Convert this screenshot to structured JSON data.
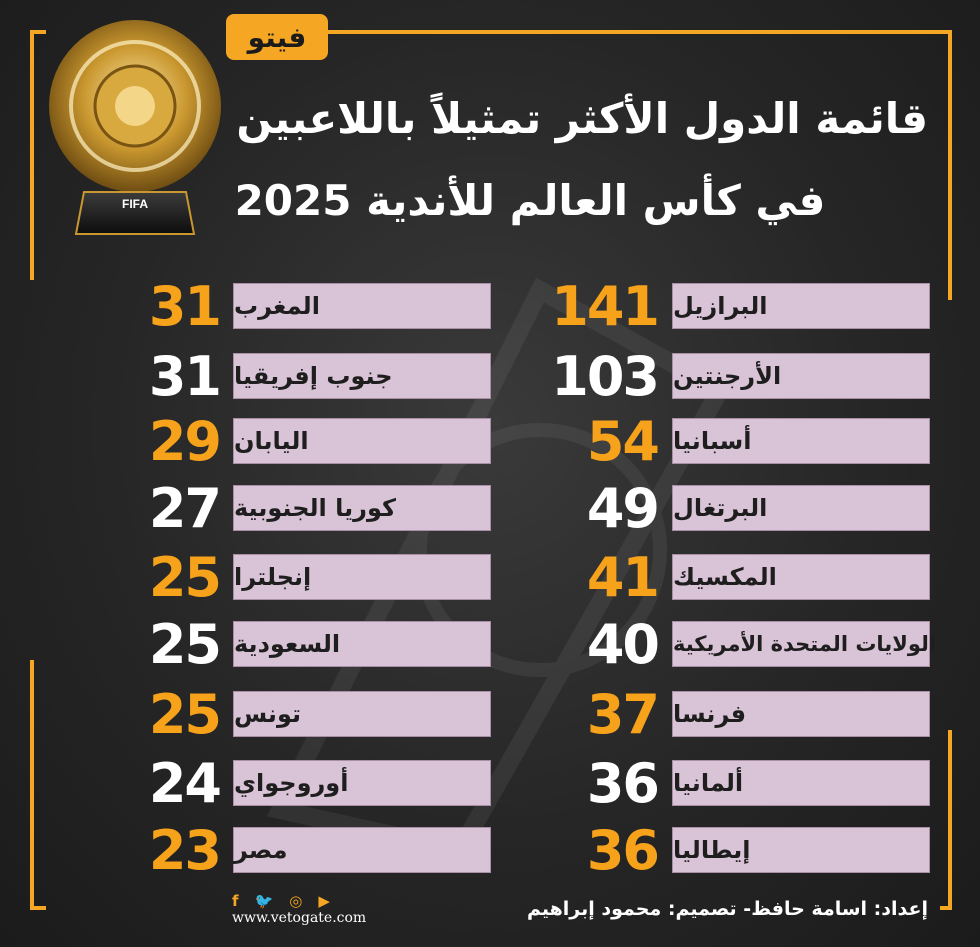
{
  "brand": {
    "logo_text": "فيتو",
    "website": "www.vetogate.com"
  },
  "header": {
    "title_line1": "قائمة الدول الأكثر تمثيلاً باللاعبين",
    "title_line2": "في كأس العالم للأندية 2025"
  },
  "trophy": {
    "label": "FIFA"
  },
  "right_column": [
    {
      "country": "البرازيل",
      "count": "141",
      "color": "orange"
    },
    {
      "country": "الأرجنتين",
      "count": "103",
      "color": "white"
    },
    {
      "country": "أسبانيا",
      "count": "54",
      "color": "orange"
    },
    {
      "country": "البرتغال",
      "count": "49",
      "color": "white"
    },
    {
      "country": "المكسيك",
      "count": "41",
      "color": "orange"
    },
    {
      "country": "الولايات المتحدة الأمريكية",
      "count": "40",
      "color": "white"
    },
    {
      "country": "فرنسا",
      "count": "37",
      "color": "orange"
    },
    {
      "country": "ألمانيا",
      "count": "36",
      "color": "white"
    },
    {
      "country": "إيطاليا",
      "count": "36",
      "color": "orange"
    }
  ],
  "left_column": [
    {
      "country": "المغرب",
      "count": "31",
      "color": "orange"
    },
    {
      "country": "جنوب إفريقيا",
      "count": "31",
      "color": "white"
    },
    {
      "country": "اليابان",
      "count": "29",
      "color": "orange"
    },
    {
      "country": "كوريا الجنوبية",
      "count": "27",
      "color": "white"
    },
    {
      "country": "إنجلترا",
      "count": "25",
      "color": "orange"
    },
    {
      "country": "السعودية",
      "count": "25",
      "color": "white"
    },
    {
      "country": "تونس",
      "count": "25",
      "color": "orange"
    },
    {
      "country": "أوروجواي",
      "count": "24",
      "color": "white"
    },
    {
      "country": "مصر",
      "count": "23",
      "color": "orange"
    }
  ],
  "footer": {
    "credits": "إعداد: اسامة حافظ- تصميم: محمود إبراهيم"
  },
  "social_icons": [
    "facebook-icon",
    "twitter-icon",
    "instagram-icon",
    "youtube-icon"
  ],
  "colors": {
    "accent": "#f5a623",
    "label_bg": "#d9c3d6",
    "background": "#262626"
  }
}
